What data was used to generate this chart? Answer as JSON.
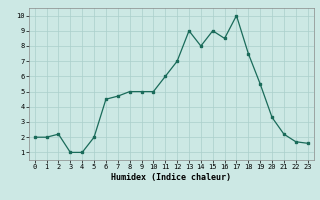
{
  "x": [
    0,
    1,
    2,
    3,
    4,
    5,
    6,
    7,
    8,
    9,
    10,
    11,
    12,
    13,
    14,
    15,
    16,
    17,
    18,
    19,
    20,
    21,
    22,
    23
  ],
  "y": [
    2,
    2,
    2.2,
    1,
    1,
    2,
    4.5,
    4.7,
    5,
    5,
    5,
    6,
    7,
    9,
    8,
    9,
    8.5,
    10,
    7.5,
    5.5,
    3.3,
    2.2,
    1.7,
    1.6
  ],
  "xlabel": "Humidex (Indice chaleur)",
  "xlim": [
    -0.5,
    23.5
  ],
  "ylim": [
    0.5,
    10.5
  ],
  "yticks": [
    1,
    2,
    3,
    4,
    5,
    6,
    7,
    8,
    9,
    10
  ],
  "xticks": [
    0,
    1,
    2,
    3,
    4,
    5,
    6,
    7,
    8,
    9,
    10,
    11,
    12,
    13,
    14,
    15,
    16,
    17,
    18,
    19,
    20,
    21,
    22,
    23
  ],
  "line_color": "#1a6b5a",
  "marker_color": "#1a6b5a",
  "bg_color": "#cce8e4",
  "grid_color": "#aacfcb",
  "title": ""
}
